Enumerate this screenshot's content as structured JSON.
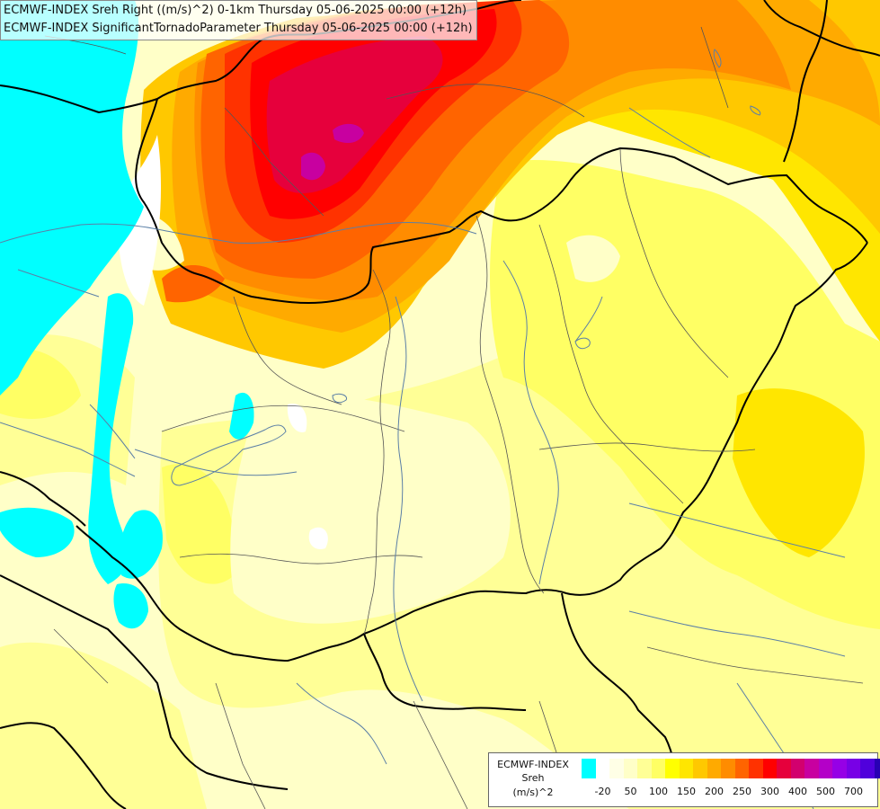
{
  "titles": {
    "line1": "ECMWF-INDEX Sreh Right ((m/s)^2) 0-1km Thursday 05-06-2025 00:00 (+12h)",
    "line2": "ECMWF-INDEX SignificantTornadoParameter Thursday 05-06-2025 00:00 (+12h)"
  },
  "legend": {
    "line1": "ECMWF-INDEX",
    "line2": "Sreh",
    "line3": "(m/s)^2",
    "colors": [
      "#00ffff",
      "#ffffff",
      "#ffffe6",
      "#ffffc8",
      "#ffff96",
      "#ffff64",
      "#ffff00",
      "#ffe600",
      "#ffc800",
      "#ffaa00",
      "#ff8c00",
      "#ff6400",
      "#ff3200",
      "#ff0000",
      "#e6003c",
      "#d2006e",
      "#c800a0",
      "#b400c8",
      "#9600e6",
      "#7800e6",
      "#5000dc",
      "#2800b4",
      "#000080"
    ],
    "ticks": [
      "-20",
      "50",
      "100",
      "150",
      "200",
      "250",
      "300",
      "400",
      "500",
      "700"
    ]
  }
}
